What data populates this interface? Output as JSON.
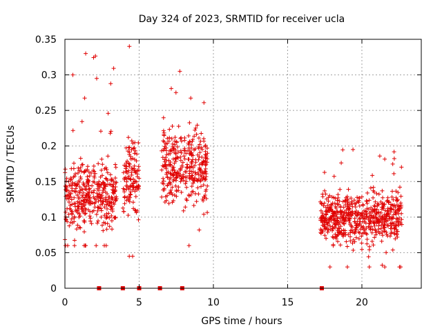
{
  "chart_data": {
    "type": "scatter",
    "title": "Day 324 of 2023, SRMTID for receiver ucla",
    "xlabel": "GPS time / hours",
    "ylabel": "SRMTID / TECUs",
    "xlim": [
      0,
      24
    ],
    "ylim": [
      0,
      0.35
    ],
    "x_ticks": [
      0,
      5,
      10,
      15,
      20
    ],
    "x_tick_labels": [
      "0",
      "5",
      "10",
      "15",
      "20"
    ],
    "y_ticks": [
      0,
      0.05,
      0.1,
      0.15,
      0.2,
      0.25,
      0.3,
      0.35
    ],
    "y_tick_labels": [
      "0",
      "0.05",
      "0.1",
      "0.15",
      "0.2",
      "0.25",
      "0.3",
      "0.35"
    ],
    "grid": true,
    "marker": "+",
    "series_color": "#e00000",
    "zero_markers_x": [
      2.3,
      3.9,
      5.0,
      6.4,
      7.9,
      17.3
    ],
    "clusters": [
      {
        "x_start": 0.0,
        "x_end": 3.5,
        "y_min": 0.06,
        "y_max": 0.33,
        "center": 0.13,
        "spread": 0.04
      },
      {
        "x_start": 3.9,
        "x_end": 5.0,
        "y_min": 0.045,
        "y_max": 0.34,
        "center": 0.15,
        "spread": 0.05
      },
      {
        "x_start": 6.5,
        "x_end": 9.6,
        "y_min": 0.06,
        "y_max": 0.305,
        "center": 0.17,
        "spread": 0.045
      },
      {
        "x_start": 17.2,
        "x_end": 22.7,
        "y_min": 0.03,
        "y_max": 0.195,
        "center": 0.1,
        "spread": 0.03
      }
    ]
  }
}
